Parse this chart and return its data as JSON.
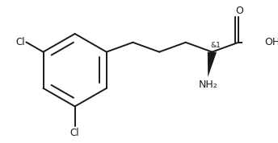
{
  "background_color": "#ffffff",
  "line_color": "#1a1a1a",
  "line_width": 1.4,
  "figsize": [
    3.44,
    1.78
  ],
  "dpi": 100,
  "cl_top_label": "Cl",
  "cl_bottom_label": "Cl",
  "stereo_label": "&1",
  "oh_label": "OH",
  "o_label": "O",
  "nh2_label": "NH₂"
}
